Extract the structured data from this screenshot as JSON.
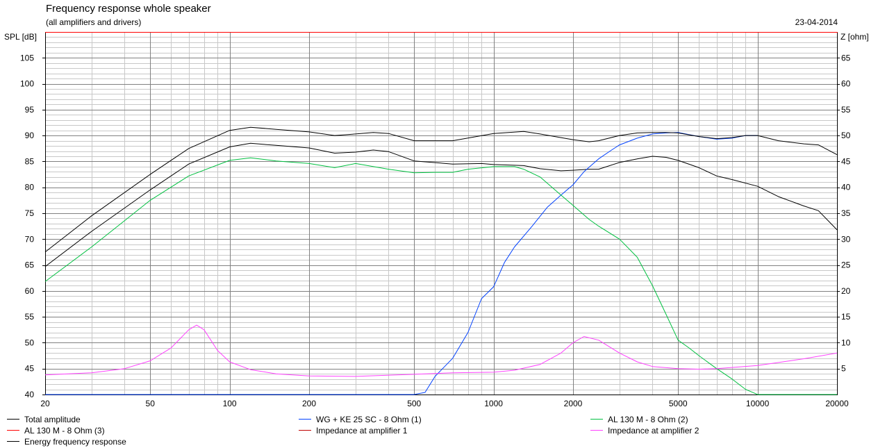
{
  "header": {
    "title": "Frequency response whole speaker",
    "subtitle": "(all amplifiers and drivers)",
    "date": "23-04-2014"
  },
  "chart_data": {
    "type": "line",
    "title": "Frequency response whole speaker",
    "subtitle": "(all amplifiers and drivers)",
    "x_scale": "log",
    "xlim": [
      20,
      20000
    ],
    "x_ticks": [
      20,
      50,
      100,
      200,
      500,
      1000,
      2000,
      5000,
      10000,
      20000
    ],
    "ylabel_left": "SPL [dB]",
    "ylim_left": [
      40,
      110
    ],
    "y_ticks_left": [
      40,
      45,
      50,
      55,
      60,
      65,
      70,
      75,
      80,
      85,
      90,
      95,
      100,
      105
    ],
    "ylabel_right": "Z [ohm]",
    "ylim_right": [
      0,
      70
    ],
    "y_ticks_right": [
      5,
      10,
      15,
      20,
      25,
      30,
      35,
      40,
      45,
      50,
      55,
      60,
      65
    ],
    "grid": true,
    "legend_position": "bottom",
    "series": [
      {
        "name": "Total amplitude",
        "color": "#000000",
        "axis": "left",
        "x": [
          20,
          30,
          50,
          70,
          100,
          120,
          150,
          200,
          250,
          300,
          350,
          400,
          500,
          700,
          900,
          1000,
          1300,
          1500,
          1800,
          2000,
          2300,
          2500,
          3000,
          3500,
          4000,
          4500,
          5000,
          6000,
          7000,
          8000,
          10000,
          12000,
          15000,
          17000,
          20000
        ],
        "y": [
          64.7,
          71.5,
          79.5,
          84.5,
          87.8,
          88.5,
          88.1,
          87.6,
          86.6,
          86.8,
          87.2,
          86.9,
          85.1,
          84.5,
          84.6,
          84.4,
          84.2,
          83.6,
          83.2,
          83.3,
          83.5,
          83.5,
          84.8,
          85.5,
          86.0,
          85.8,
          85.2,
          83.8,
          82.2,
          81.5,
          80.2,
          78.2,
          76.4,
          75.5,
          71.8
        ]
      },
      {
        "name": "WG + KE 25 SC - 8 Ohm (1)",
        "color": "#0040ff",
        "axis": "left",
        "x": [
          20,
          100,
          300,
          500,
          550,
          600,
          700,
          800,
          900,
          1000,
          1100,
          1200,
          1400,
          1600,
          1800,
          2000,
          2200,
          2500,
          2800,
          3000,
          3500,
          4000,
          4500,
          5000,
          5500,
          6000,
          7000,
          8000,
          9000,
          10000
        ],
        "y": [
          40.0,
          40.0,
          40.0,
          40.0,
          40.4,
          43.5,
          47.0,
          52.0,
          58.5,
          60.8,
          65.5,
          68.5,
          72.5,
          76.2,
          78.5,
          80.5,
          83.0,
          85.5,
          87.2,
          88.2,
          89.5,
          90.3,
          90.5,
          90.6,
          90.2,
          89.8,
          89.3,
          89.5,
          90.0,
          90.0
        ]
      },
      {
        "name": "AL 130 M - 8 Ohm (2)",
        "color": "#00c040",
        "axis": "left",
        "x": [
          20,
          30,
          50,
          70,
          100,
          120,
          150,
          200,
          250,
          300,
          400,
          500,
          600,
          700,
          800,
          1000,
          1200,
          1300,
          1500,
          1800,
          2000,
          2300,
          2500,
          3000,
          3500,
          4000,
          4500,
          5000,
          5500,
          6000,
          7000,
          8000,
          9000,
          9500,
          10000,
          20000
        ],
        "y": [
          61.8,
          68.5,
          77.5,
          82.2,
          85.2,
          85.7,
          85.1,
          84.6,
          83.8,
          84.6,
          83.5,
          82.8,
          82.9,
          82.9,
          83.5,
          84.0,
          84.0,
          83.5,
          82.0,
          78.5,
          76.5,
          73.8,
          72.5,
          70.0,
          66.5,
          61.0,
          55.5,
          50.5,
          49.0,
          47.5,
          45.0,
          43.0,
          41.0,
          40.5,
          40.0,
          40.0
        ]
      },
      {
        "name": "AL 130 M - 8 Ohm (3)",
        "color": "#ff0000",
        "axis": "left",
        "x": [],
        "y": []
      },
      {
        "name": "Impedance at amplifier 1",
        "color": "#c00000",
        "axis": "right",
        "x": [],
        "y": []
      },
      {
        "name": "Impedance at amplifier 2",
        "color": "#ff40ff",
        "axis": "right",
        "x": [
          20,
          30,
          40,
          50,
          60,
          70,
          75,
          80,
          90,
          100,
          120,
          150,
          200,
          300,
          500,
          700,
          1000,
          1200,
          1500,
          1800,
          2000,
          2200,
          2500,
          3000,
          3500,
          4000,
          5000,
          6000,
          7000,
          10000,
          15000,
          20000
        ],
        "y": [
          3.8,
          4.2,
          5.0,
          6.5,
          9.0,
          12.5,
          13.4,
          12.5,
          8.5,
          6.3,
          4.8,
          4.0,
          3.6,
          3.5,
          3.9,
          4.2,
          4.3,
          4.7,
          5.8,
          8.0,
          10.0,
          11.2,
          10.5,
          8.0,
          6.3,
          5.4,
          5.0,
          4.9,
          5.0,
          5.6,
          6.9,
          8.0
        ]
      },
      {
        "name": "Energy frequency response",
        "color": "#000000",
        "axis": "left",
        "x": [
          20,
          30,
          50,
          70,
          100,
          120,
          150,
          200,
          250,
          300,
          350,
          400,
          500,
          700,
          1000,
          1300,
          1500,
          1800,
          2000,
          2300,
          2500,
          3000,
          3500,
          4000,
          4500,
          5000,
          6000,
          7000,
          8000,
          9000,
          10000,
          12000,
          15000,
          17000,
          20000
        ],
        "y": [
          67.5,
          74.5,
          82.5,
          87.5,
          91.0,
          91.6,
          91.2,
          90.7,
          90.0,
          90.3,
          90.6,
          90.4,
          89.0,
          89.0,
          90.4,
          90.8,
          90.3,
          89.6,
          89.2,
          88.8,
          89.0,
          90.0,
          90.5,
          90.6,
          90.6,
          90.5,
          89.8,
          89.4,
          89.6,
          90.0,
          90.0,
          89.0,
          88.4,
          88.2,
          86.3
        ]
      }
    ]
  },
  "legend": {
    "items": [
      {
        "label": "Total amplitude",
        "color": "#000000"
      },
      {
        "label": "WG + KE 25 SC - 8 Ohm (1)",
        "color": "#0040ff"
      },
      {
        "label": "AL 130 M - 8 Ohm (2)",
        "color": "#00c040"
      },
      {
        "label": "AL 130 M - 8 Ohm (3)",
        "color": "#ff0000"
      },
      {
        "label": "Impedance at amplifier 1",
        "color": "#c00000"
      },
      {
        "label": "Impedance at amplifier 2",
        "color": "#ff40ff"
      },
      {
        "label": "Energy frequency response",
        "color": "#000000"
      }
    ]
  },
  "colors": {
    "plot_border_top": "#ff0000",
    "major_grid": "#808080",
    "minor_grid": "#c8c8c8"
  }
}
